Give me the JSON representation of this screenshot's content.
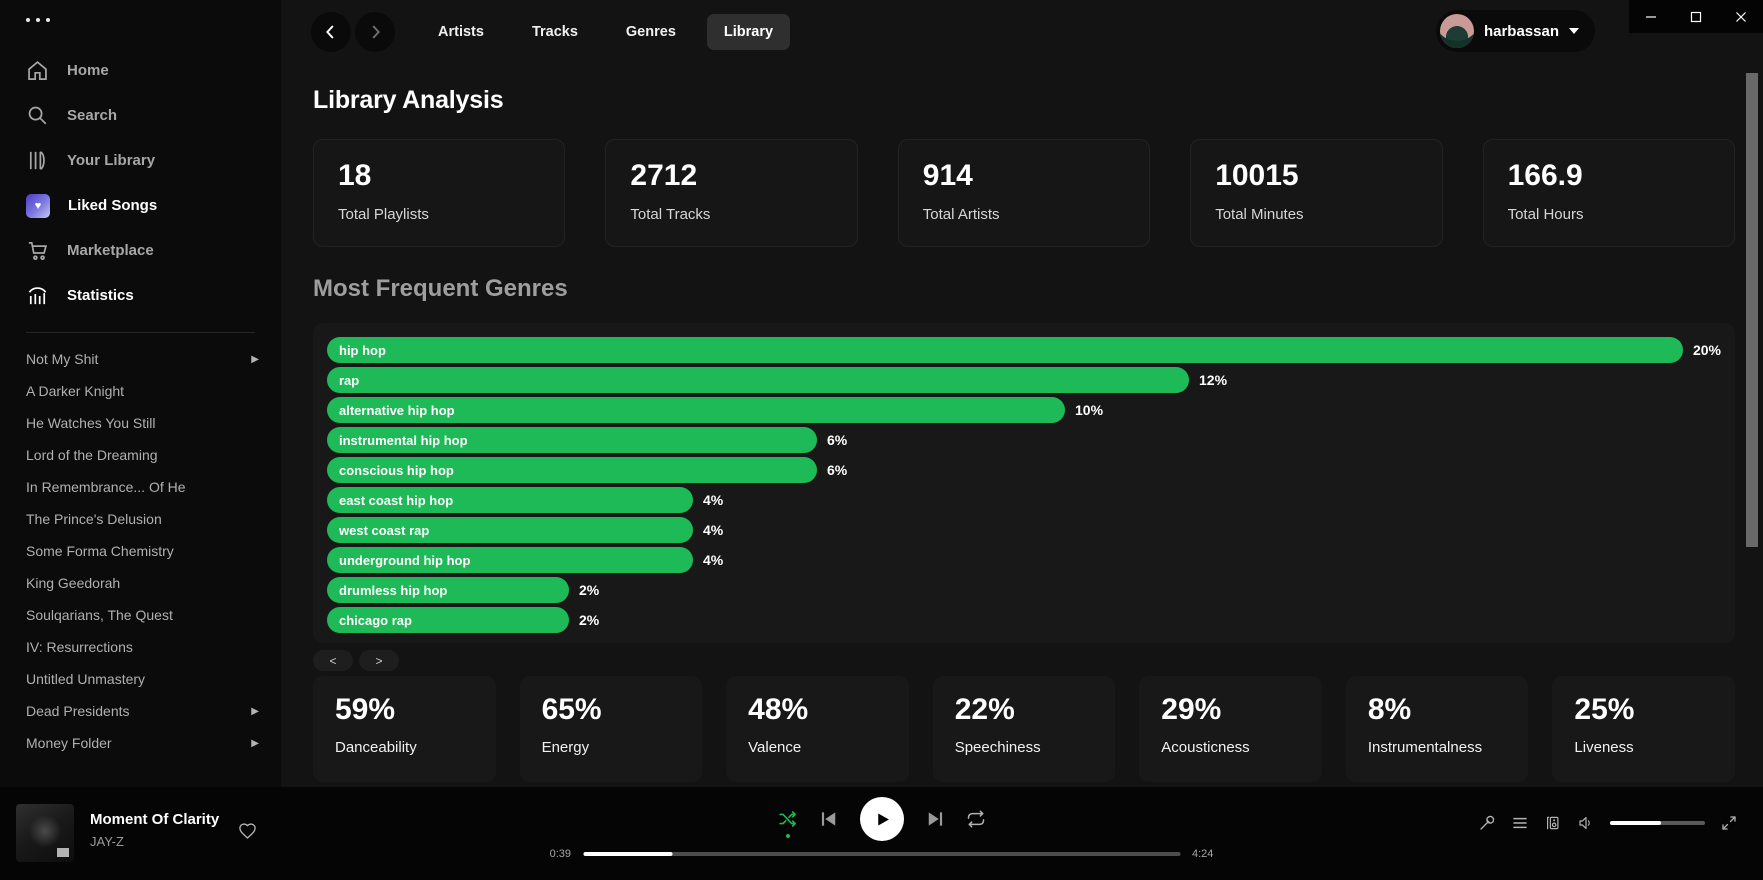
{
  "window": {
    "controls": {
      "minimize": "minimize",
      "maximize": "maximize",
      "close": "close"
    }
  },
  "sidebar": {
    "nav": [
      {
        "label": "Home",
        "icon": "home-icon",
        "active": false
      },
      {
        "label": "Search",
        "icon": "search-icon",
        "active": false
      },
      {
        "label": "Your Library",
        "icon": "library-icon",
        "active": false
      },
      {
        "label": "Liked Songs",
        "icon": "liked-heart-icon",
        "active": true
      },
      {
        "label": "Marketplace",
        "icon": "cart-icon",
        "active": false
      },
      {
        "label": "Statistics",
        "icon": "stats-icon",
        "active": true
      }
    ],
    "playlists": [
      {
        "label": "Not My Shit",
        "expandable": true
      },
      {
        "label": "A Darker Knight",
        "expandable": false
      },
      {
        "label": "He Watches You Still",
        "expandable": false
      },
      {
        "label": "Lord of the Dreaming",
        "expandable": false
      },
      {
        "label": "In Remembrance... Of He",
        "expandable": false
      },
      {
        "label": "The Prince's Delusion",
        "expandable": false
      },
      {
        "label": "Some Forma Chemistry",
        "expandable": false
      },
      {
        "label": "King Geedorah",
        "expandable": false
      },
      {
        "label": "Soulqarians, The Quest",
        "expandable": false
      },
      {
        "label": "IV: Resurrections",
        "expandable": false
      },
      {
        "label": "Untitled Unmastery",
        "expandable": false
      },
      {
        "label": "Dead Presidents",
        "expandable": true
      },
      {
        "label": "Money Folder",
        "expandable": true
      }
    ]
  },
  "topbar": {
    "tabs": [
      {
        "label": "Artists",
        "active": false
      },
      {
        "label": "Tracks",
        "active": false
      },
      {
        "label": "Genres",
        "active": false
      },
      {
        "label": "Library",
        "active": true
      }
    ],
    "user": {
      "name": "harbassan"
    }
  },
  "main": {
    "title": "Library Analysis",
    "stats": [
      {
        "value": "18",
        "label": "Total Playlists"
      },
      {
        "value": "2712",
        "label": "Total Tracks"
      },
      {
        "value": "914",
        "label": "Total Artists"
      },
      {
        "value": "10015",
        "label": "Total Minutes"
      },
      {
        "value": "166.9",
        "label": "Total Hours"
      }
    ],
    "pagination": {
      "prev": "<",
      "next": ">"
    },
    "features": [
      {
        "value": "59%",
        "label": "Danceability"
      },
      {
        "value": "65%",
        "label": "Energy"
      },
      {
        "value": "48%",
        "label": "Valence"
      },
      {
        "value": "22%",
        "label": "Speechiness"
      },
      {
        "value": "29%",
        "label": "Acousticness"
      },
      {
        "value": "8%",
        "label": "Instrumentalness"
      },
      {
        "value": "25%",
        "label": "Liveness"
      }
    ]
  },
  "chart_data": {
    "type": "bar",
    "orientation": "horizontal",
    "title": "Most Frequent Genres",
    "categories": [
      "hip hop",
      "rap",
      "alternative hip hop",
      "instrumental hip hop",
      "conscious hip hop",
      "east coast hip hop",
      "west coast rap",
      "underground hip hop",
      "drumless hip hop",
      "chicago rap"
    ],
    "values": [
      20,
      12,
      10,
      6,
      6,
      4,
      4,
      4,
      2,
      2
    ],
    "unit": "%",
    "bar_color": "#1fba58",
    "value_labels": [
      "20%",
      "12%",
      "10%",
      "6%",
      "6%",
      "4%",
      "4%",
      "4%",
      "2%",
      "2%"
    ],
    "xlim": [
      0,
      20
    ],
    "grid": false,
    "legend": false
  },
  "player": {
    "track": {
      "title": "Moment Of Clarity",
      "artist": "JAY-Z"
    },
    "current_time": "0:39",
    "total_time": "4:24",
    "progress_pct": 15,
    "volume_pct": 54,
    "shuffle_active": true,
    "accent_color": "#1db954"
  }
}
